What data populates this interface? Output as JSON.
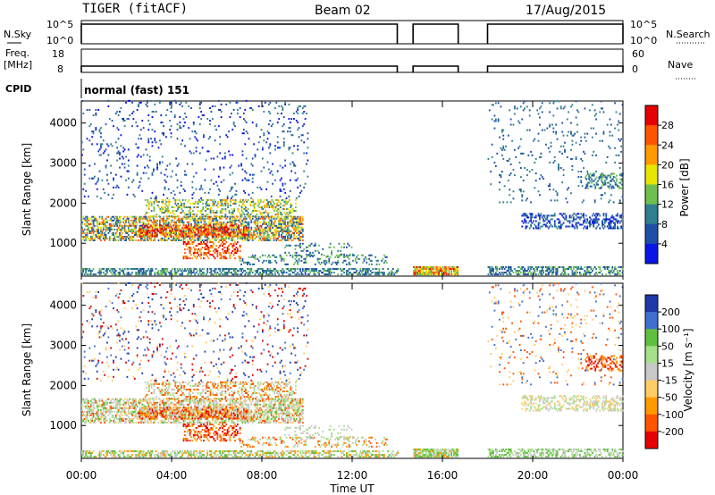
{
  "header": {
    "title": "TIGER (fitACF)",
    "beam": "Beam 02",
    "date": "17/Aug/2015"
  },
  "sky_panel": {
    "left_label": "N.Sky",
    "left_top": "10^5",
    "left_bottom": "10^0",
    "right_top": "10^5",
    "right_bottom": "10^0",
    "right_label": "N.Search"
  },
  "freq_panel": {
    "left_label_1": "Freq.",
    "left_label_2": "[MHz]",
    "left_top": "18",
    "left_bottom": "8",
    "right_top": "60",
    "right_bottom": "0",
    "right_label": "Nave"
  },
  "cpid": {
    "label": "CPID",
    "value": "normal (fast) 151"
  },
  "chart_data": [
    {
      "type": "heatmap",
      "panel": "power",
      "ylabel": "Slant Range [km]",
      "yticks": [
        1000,
        2000,
        3000,
        4000
      ],
      "ylim": [
        180,
        4550
      ],
      "xlim": [
        0,
        24
      ],
      "colorbar_label": "Power [dB]",
      "colorbar_ticks": [
        4,
        8,
        12,
        16,
        20,
        24,
        28
      ],
      "colorbar_colors": [
        "#0a14e6",
        "#1e4fa8",
        "#2f7f8f",
        "#6fbf4f",
        "#e6e600",
        "#ff9900",
        "#ff5500",
        "#e60000"
      ],
      "data_gaps_ut": [
        [
          14.0,
          14.7
        ],
        [
          16.7,
          18.0
        ]
      ]
    },
    {
      "type": "heatmap",
      "panel": "velocity",
      "ylabel": "Slant Range [km]",
      "yticks": [
        1000,
        2000,
        3000,
        4000
      ],
      "ylim": [
        180,
        4550
      ],
      "xlim": [
        0,
        24
      ],
      "xlabel": "Time UT",
      "xticks": [
        "00:00",
        "04:00",
        "08:00",
        "12:00",
        "16:00",
        "20:00",
        "00:00"
      ],
      "colorbar_label": "Velocity [m s⁻¹]",
      "colorbar_ticks": [
        200,
        100,
        50,
        15,
        -15,
        -50,
        -100,
        -200
      ],
      "colorbar_colors": [
        "#1e3aa8",
        "#3f6fd0",
        "#5fbf3f",
        "#a6e08a",
        "#c8c8c8",
        "#ffcc66",
        "#ff9900",
        "#ff5500",
        "#e60000"
      ],
      "data_gaps_ut": [
        [
          14.0,
          14.7
        ],
        [
          16.7,
          18.0
        ]
      ]
    }
  ]
}
